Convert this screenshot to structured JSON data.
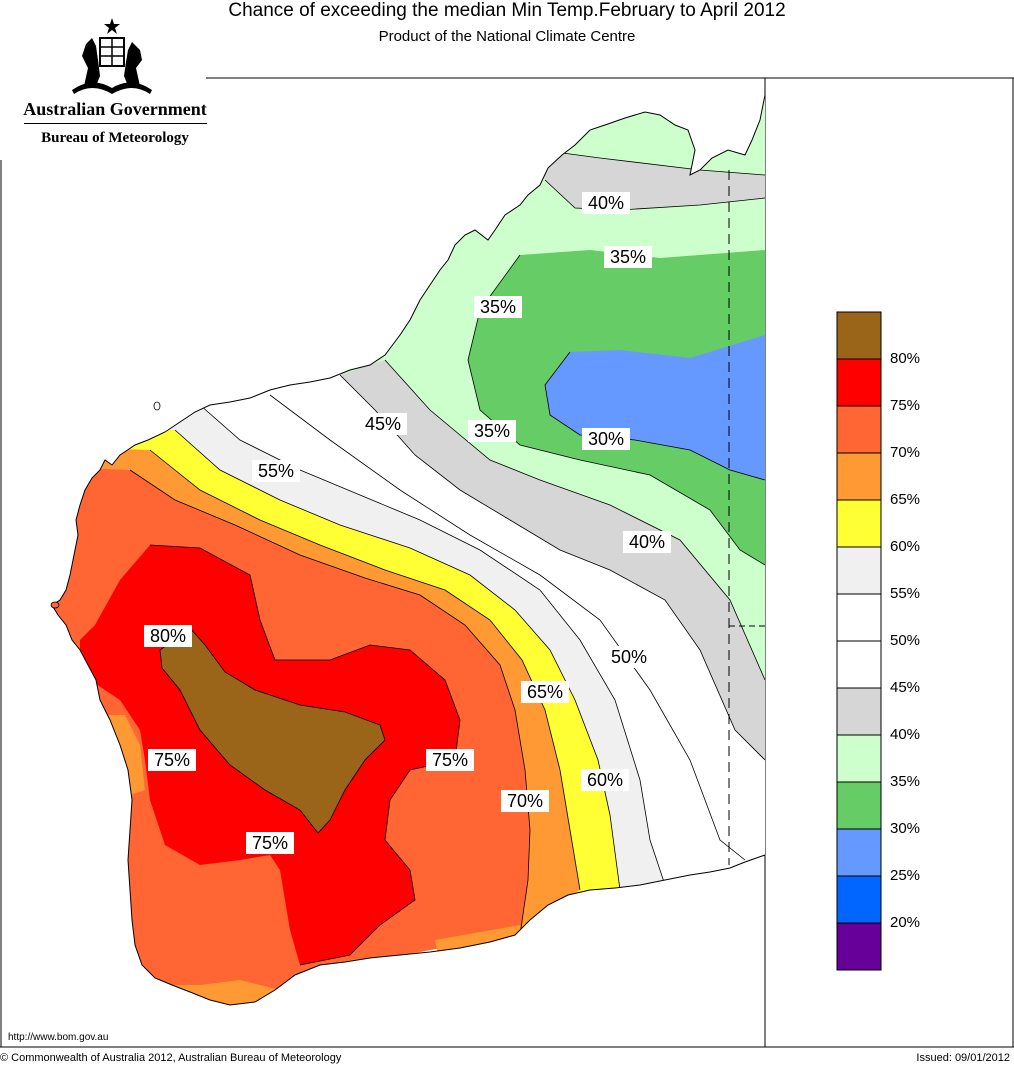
{
  "header": {
    "title": "Chance of exceeding the median Min Temp.February to April 2012",
    "subtitle": "Product of the National Climate Centre"
  },
  "logo": {
    "government": "Australian Government",
    "bureau": "Bureau of Meteorology"
  },
  "map": {
    "region": "Western Australia",
    "contour_labels": [
      {
        "text": "40%",
        "band": 40
      },
      {
        "text": "35%",
        "band": 35
      },
      {
        "text": "35%",
        "band": 35
      },
      {
        "text": "45%",
        "band": 45
      },
      {
        "text": "35%",
        "band": 35
      },
      {
        "text": "30%",
        "band": 30
      },
      {
        "text": "55%",
        "band": 55
      },
      {
        "text": "40%",
        "band": 40
      },
      {
        "text": "80%",
        "band": 80
      },
      {
        "text": "50%",
        "band": 50
      },
      {
        "text": "65%",
        "band": 65
      },
      {
        "text": "75%",
        "band": 75
      },
      {
        "text": "75%",
        "band": 75
      },
      {
        "text": "60%",
        "band": 60
      },
      {
        "text": "70%",
        "band": 70
      },
      {
        "text": "75%",
        "band": 75
      }
    ]
  },
  "legend": {
    "bands": [
      {
        "color": "#9a6419",
        "label": "80%"
      },
      {
        "color": "#ff0000",
        "label": "75%"
      },
      {
        "color": "#ff6633",
        "label": "70%"
      },
      {
        "color": "#ff9933",
        "label": "65%"
      },
      {
        "color": "#ffff33",
        "label": "60%"
      },
      {
        "color": "#f0f0f0",
        "label": "55%"
      },
      {
        "color": "#ffffff",
        "label": "50%"
      },
      {
        "color": "#ffffff",
        "label": "45%"
      },
      {
        "color": "#d6d6d6",
        "label": "40%"
      },
      {
        "color": "#ccffcc",
        "label": "35%"
      },
      {
        "color": "#66cc66",
        "label": "30%"
      },
      {
        "color": "#6699ff",
        "label": "25%"
      },
      {
        "color": "#0066ff",
        "label": "20%"
      },
      {
        "color": "#660099",
        "label": ""
      }
    ]
  },
  "footer": {
    "url": "http://www.bom.gov.au",
    "copyright": "© Commonwealth of Australia 2012, Australian Bureau of Meteorology",
    "issued": "Issued: 09/01/2012"
  }
}
